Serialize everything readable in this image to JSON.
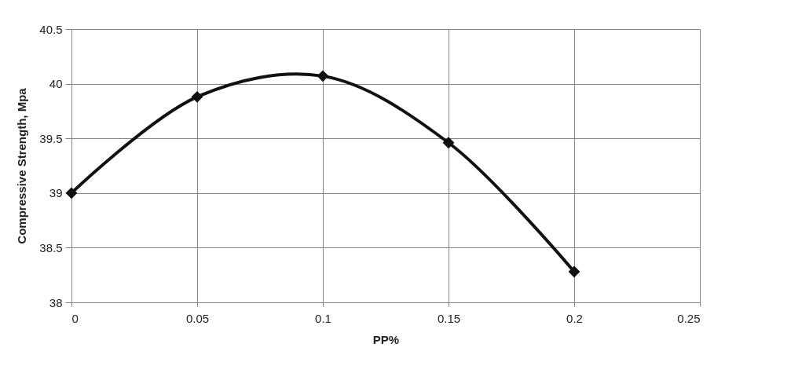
{
  "chart_data": {
    "type": "line",
    "xlabel": "PP%",
    "ylabel": "Compressive Strength, Mpa",
    "x": [
      0,
      0.05,
      0.1,
      0.15,
      0.2
    ],
    "series": [
      {
        "color": "#111111",
        "values": [
          39.0,
          39.88,
          40.07,
          39.46,
          38.28
        ]
      }
    ],
    "xlim": [
      0,
      0.25
    ],
    "xticks": [
      0,
      0.05,
      0.1,
      0.15,
      0.2,
      0.25
    ],
    "ylim": [
      38,
      40.5
    ],
    "yticks": [
      38,
      38.5,
      39,
      39.5,
      40,
      40.5
    ],
    "grid": true,
    "marker": "diamond",
    "line_style": "solid"
  }
}
